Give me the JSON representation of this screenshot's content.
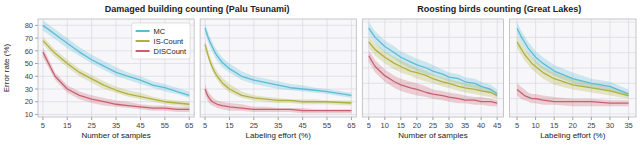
{
  "chart_data": [
    {
      "type": "line",
      "title": "Damaged building counting (Palu Tsunami)",
      "xlabel": "Number of samples",
      "ylabel": "Error rate (%)",
      "x": [
        5,
        10,
        15,
        20,
        25,
        30,
        35,
        40,
        45,
        50,
        55,
        60,
        65
      ],
      "series": [
        {
          "name": "MC",
          "color": "#5bbcd6",
          "values": [
            80,
            73,
            66,
            59,
            53,
            48,
            43,
            40,
            37,
            33,
            31,
            28,
            25
          ],
          "lower": [
            76,
            69,
            62,
            56,
            50,
            45,
            40,
            37,
            34,
            31,
            28,
            26,
            23
          ],
          "upper": [
            84,
            77,
            70,
            63,
            57,
            52,
            47,
            43,
            40,
            36,
            34,
            31,
            28
          ]
        },
        {
          "name": "IS-Count",
          "color": "#b0b040",
          "values": [
            68,
            58,
            50,
            43,
            38,
            33,
            29,
            26,
            24,
            22,
            20,
            19,
            18
          ],
          "lower": [
            65,
            55,
            47,
            40,
            35,
            30,
            27,
            24,
            22,
            20,
            18,
            17,
            16
          ],
          "upper": [
            71,
            61,
            53,
            46,
            41,
            36,
            32,
            29,
            27,
            24,
            22,
            21,
            20
          ]
        },
        {
          "name": "DISCount",
          "color": "#c86070",
          "values": [
            59,
            40,
            30,
            25,
            22,
            20,
            18,
            17,
            16,
            15,
            15,
            14,
            14
          ],
          "lower": [
            55,
            37,
            27,
            22,
            19,
            17,
            16,
            15,
            14,
            13,
            13,
            12,
            12
          ],
          "upper": [
            63,
            43,
            33,
            28,
            25,
            23,
            21,
            20,
            18,
            17,
            17,
            16,
            16
          ]
        }
      ],
      "xlim": [
        3,
        67
      ],
      "xticks": [
        5,
        15,
        25,
        35,
        45,
        55,
        65
      ],
      "ylim": [
        8,
        85
      ],
      "yticks": [
        10,
        20,
        30,
        40,
        50,
        60,
        70,
        80
      ],
      "grid": true,
      "legend": "upper right"
    },
    {
      "type": "line",
      "xlabel": "Labeling effort (%)",
      "x": [
        5,
        6,
        7,
        8,
        9,
        10,
        12,
        15,
        20,
        25,
        30,
        35,
        40,
        45,
        50,
        55,
        65
      ],
      "series": [
        {
          "color": "#5bbcd6",
          "values": [
            78,
            72,
            67,
            63,
            59,
            56,
            51,
            46,
            40,
            37,
            35,
            33,
            31,
            30,
            29,
            28,
            25
          ],
          "lower": [
            74,
            68,
            63,
            59,
            55,
            52,
            47,
            43,
            37,
            34,
            32,
            30,
            29,
            28,
            27,
            26,
            23
          ],
          "upper": [
            82,
            76,
            71,
            67,
            63,
            60,
            55,
            50,
            44,
            40,
            38,
            36,
            34,
            33,
            31,
            30,
            27
          ]
        },
        {
          "color": "#b0b040",
          "values": [
            65,
            58,
            52,
            47,
            43,
            40,
            35,
            30,
            25,
            23,
            22,
            21,
            21,
            20,
            20,
            20,
            19
          ],
          "lower": [
            61,
            55,
            49,
            44,
            40,
            37,
            32,
            27,
            23,
            21,
            20,
            19,
            19,
            18,
            18,
            18,
            17
          ],
          "upper": [
            69,
            62,
            56,
            51,
            47,
            44,
            39,
            34,
            28,
            25,
            24,
            23,
            22,
            22,
            22,
            21,
            21
          ]
        },
        {
          "color": "#c86070",
          "values": [
            30,
            25,
            22,
            20,
            19,
            18,
            17,
            16,
            15,
            14,
            14,
            14,
            14,
            13,
            13,
            13,
            13
          ],
          "lower": [
            26,
            21,
            18,
            17,
            16,
            15,
            14,
            13,
            13,
            12,
            12,
            12,
            12,
            11,
            11,
            11,
            11
          ],
          "upper": [
            34,
            29,
            26,
            24,
            22,
            21,
            20,
            19,
            18,
            16,
            16,
            15,
            15,
            15,
            14,
            14,
            14
          ]
        }
      ],
      "xlim": [
        3,
        67
      ],
      "xticks": [
        5,
        15,
        25,
        35,
        45,
        55,
        65
      ],
      "ylim": [
        8,
        85
      ],
      "yticks": [
        10,
        20,
        30,
        40,
        50,
        60,
        70,
        80
      ],
      "grid": true,
      "tick_labels": "x"
    },
    {
      "type": "line",
      "title": "Roosting birds counting (Great Lakes)",
      "xlabel": "Number of samples",
      "x": [
        5,
        7,
        10,
        13,
        15,
        18,
        20,
        23,
        25,
        28,
        30,
        33,
        35,
        38,
        40,
        43,
        45
      ],
      "series": [
        {
          "color": "#5bbcd6",
          "values": [
            66,
            60,
            54,
            50,
            47,
            44,
            42,
            40,
            38,
            36,
            34,
            33,
            31,
            30,
            28,
            26,
            23
          ],
          "lower": [
            62,
            56,
            50,
            46,
            43,
            40,
            38,
            36,
            35,
            33,
            31,
            30,
            28,
            27,
            25,
            24,
            21
          ],
          "upper": [
            70,
            64,
            58,
            54,
            51,
            48,
            46,
            44,
            42,
            39,
            37,
            36,
            34,
            33,
            31,
            29,
            26
          ]
        },
        {
          "color": "#b0b040",
          "values": [
            57,
            52,
            47,
            43,
            41,
            38,
            37,
            35,
            33,
            31,
            30,
            28,
            27,
            26,
            25,
            24,
            22
          ],
          "lower": [
            53,
            48,
            43,
            39,
            37,
            35,
            33,
            31,
            30,
            28,
            27,
            25,
            24,
            23,
            22,
            21,
            20
          ],
          "upper": [
            61,
            56,
            51,
            47,
            45,
            42,
            40,
            38,
            36,
            34,
            33,
            31,
            30,
            29,
            28,
            27,
            24
          ]
        },
        {
          "color": "#c86070",
          "values": [
            48,
            41,
            35,
            31,
            29,
            27,
            26,
            24,
            23,
            22,
            21,
            20,
            19,
            19,
            18,
            18,
            17
          ],
          "lower": [
            44,
            37,
            31,
            27,
            25,
            23,
            22,
            21,
            20,
            19,
            18,
            17,
            17,
            16,
            16,
            15,
            15
          ],
          "upper": [
            52,
            45,
            39,
            35,
            33,
            31,
            30,
            28,
            26,
            25,
            24,
            23,
            22,
            21,
            21,
            20,
            19
          ]
        }
      ],
      "xlim": [
        3,
        47
      ],
      "xticks": [
        5,
        10,
        15,
        20,
        25,
        30,
        35,
        40,
        45
      ],
      "ylim": [
        8,
        72
      ],
      "yticks": [
        10,
        20,
        30,
        40,
        50,
        60,
        70
      ],
      "grid": true,
      "tick_labels": "x"
    },
    {
      "type": "line",
      "xlabel": "Labeling effort (%)",
      "x": [
        5,
        6,
        7,
        8,
        9,
        10,
        12,
        15,
        20,
        25,
        30,
        35
      ],
      "series": [
        {
          "color": "#5bbcd6",
          "values": [
            66,
            61,
            57,
            53,
            50,
            47,
            43,
            38,
            33,
            30,
            28,
            23
          ],
          "lower": [
            62,
            57,
            53,
            49,
            46,
            43,
            39,
            35,
            30,
            27,
            25,
            21
          ],
          "upper": [
            70,
            65,
            61,
            57,
            54,
            51,
            47,
            42,
            37,
            33,
            31,
            26
          ]
        },
        {
          "color": "#b0b040",
          "values": [
            57,
            53,
            49,
            46,
            43,
            41,
            37,
            33,
            29,
            27,
            25,
            22
          ],
          "lower": [
            53,
            49,
            45,
            42,
            39,
            37,
            33,
            29,
            26,
            24,
            22,
            20
          ],
          "upper": [
            61,
            57,
            53,
            50,
            47,
            45,
            41,
            37,
            33,
            30,
            28,
            24
          ]
        },
        {
          "color": "#c86070",
          "values": [
            26,
            24,
            22,
            21,
            20,
            20,
            19,
            18,
            18,
            18,
            17,
            17
          ],
          "lower": [
            22,
            20,
            19,
            18,
            17,
            17,
            16,
            16,
            15,
            15,
            15,
            15
          ],
          "upper": [
            30,
            28,
            26,
            24,
            23,
            23,
            22,
            21,
            20,
            20,
            19,
            19
          ]
        }
      ],
      "xlim": [
        3,
        37
      ],
      "xticks": [
        5,
        10,
        15,
        20,
        25,
        30,
        35
      ],
      "ylim": [
        8,
        72
      ],
      "yticks": [
        10,
        20,
        30,
        40,
        50,
        60,
        70
      ],
      "grid": true,
      "tick_labels": "x"
    }
  ]
}
